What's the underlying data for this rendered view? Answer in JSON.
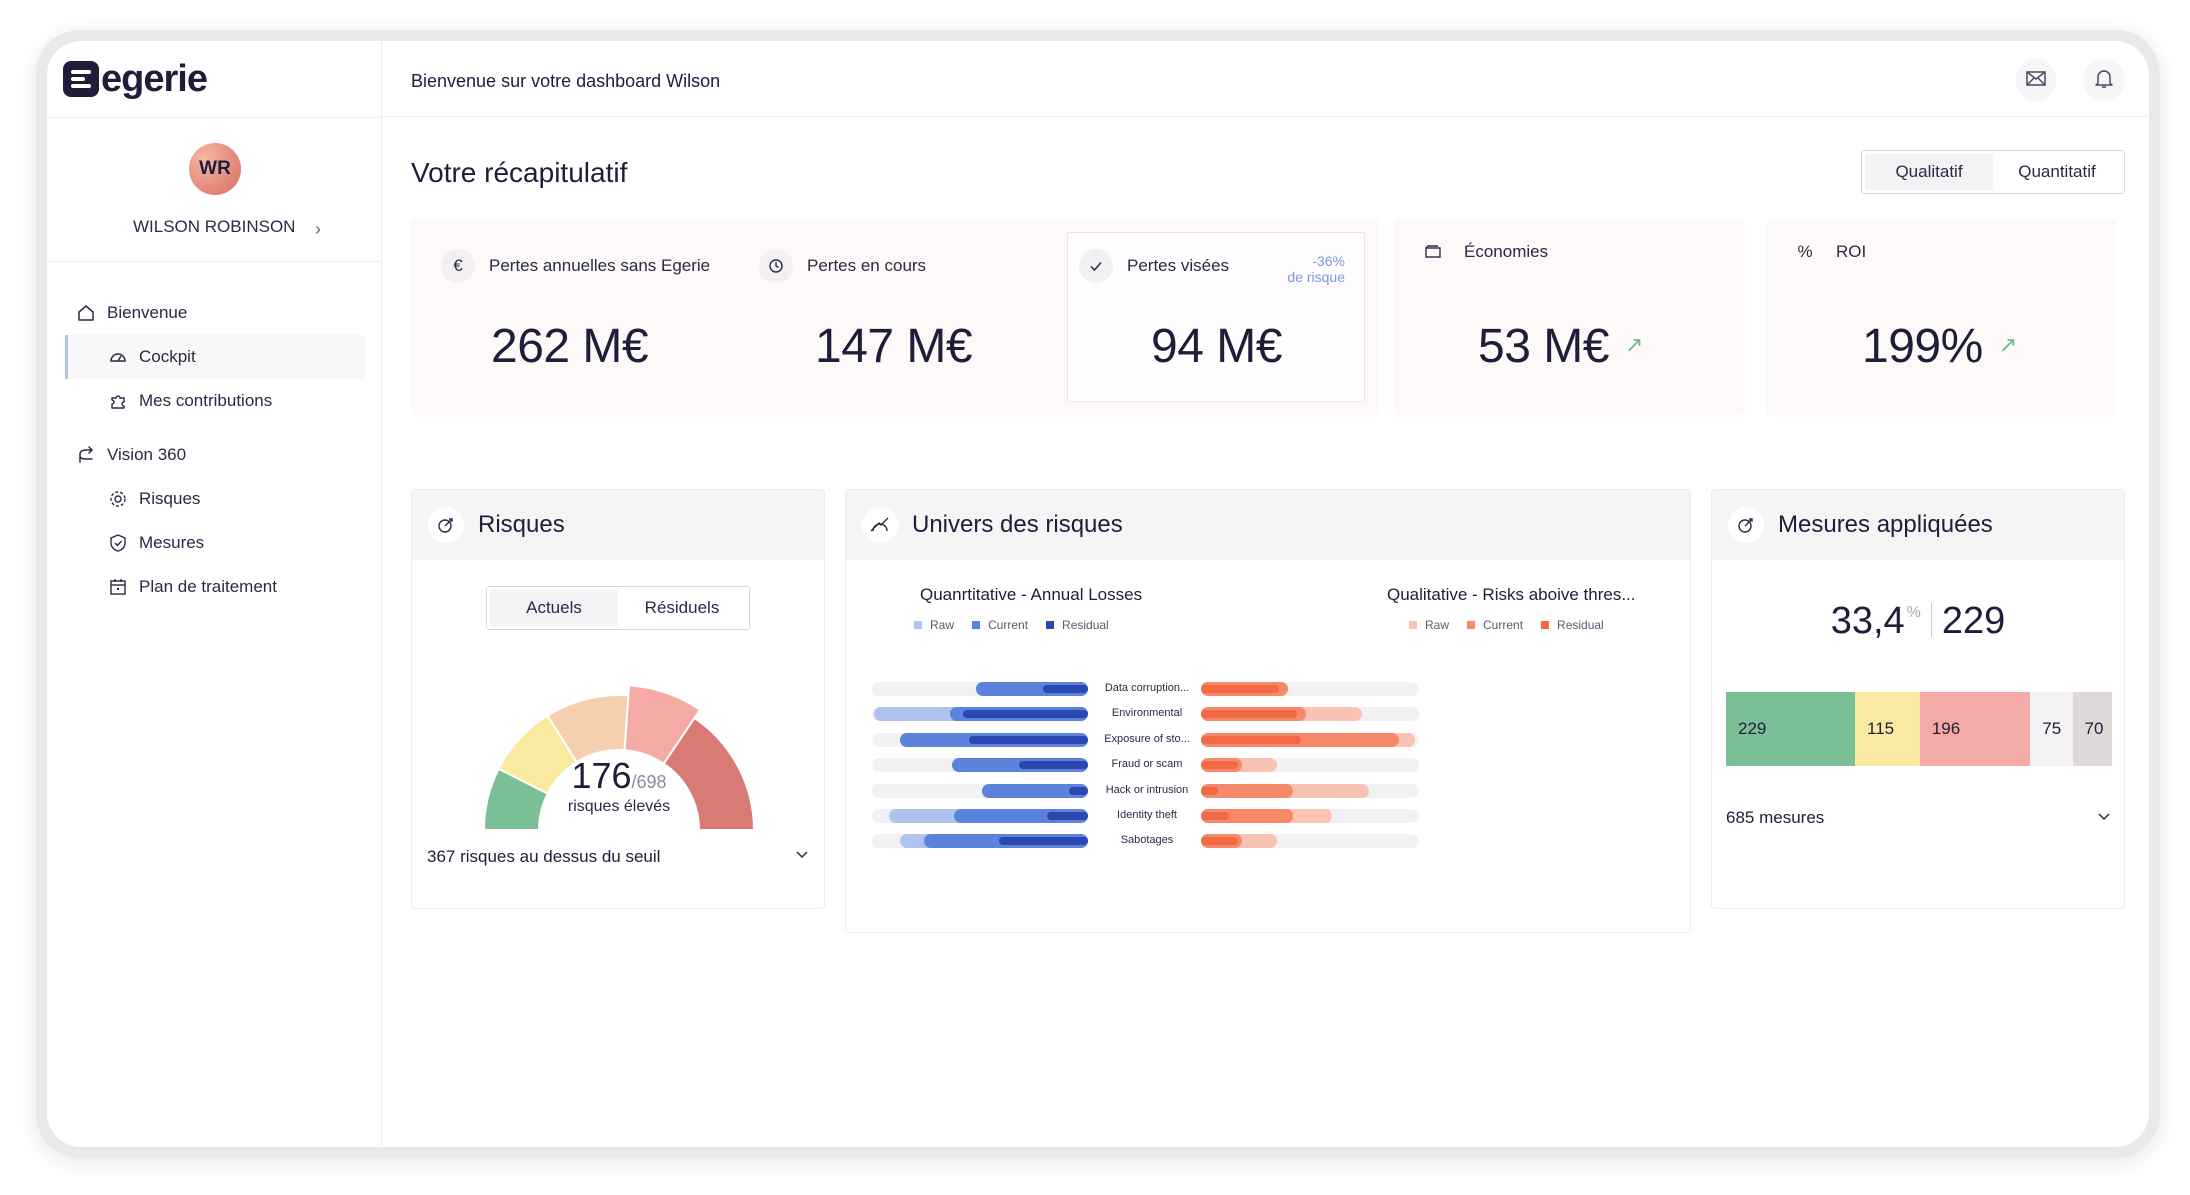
{
  "brand": {
    "name": "egerie",
    "initials": "WR"
  },
  "user": {
    "name": "WILSON ROBINSON"
  },
  "header": {
    "welcome": "Bienvenue sur votre dashboard Wilson"
  },
  "nav": {
    "home": "Bienvenue",
    "cockpit": "Cockpit",
    "contributions": "Mes contributions",
    "vision": "Vision 360",
    "risques": "Risques",
    "mesures": "Mesures",
    "plan": "Plan de traitement"
  },
  "summary": {
    "title": "Votre récapitulatif",
    "toggle": [
      "Qualitatif",
      "Quantitatif"
    ],
    "kpis": {
      "pertes_annuelles": {
        "label": "Pertes annuelles sans Egerie",
        "value": "262 M€",
        "icon": "euro-icon"
      },
      "pertes_en_cours": {
        "label": "Pertes en cours",
        "value": "147 M€",
        "icon": "clock-icon"
      },
      "pertes_visees": {
        "label": "Pertes visées",
        "value": "94 M€",
        "delta": "-36%",
        "delta_sub": "de risque",
        "icon": "check-icon"
      },
      "economies": {
        "label": "Économies",
        "value": "53 M€",
        "icon": "wallet-icon"
      },
      "roi": {
        "label": "ROI",
        "value": "199%",
        "prefix": "%"
      }
    }
  },
  "risques": {
    "title": "Risques",
    "tabs": [
      "Actuels",
      "Résiduels"
    ],
    "gauge": {
      "value": "176",
      "total": "/698",
      "sublabel": "risques élevés",
      "fraction": 0.252
    },
    "footer": "367 risques au dessus du seuil"
  },
  "univers": {
    "title": "Univers des risques",
    "left_title": "Quanrtitative - Annual Losses",
    "right_title": "Qualitative - Risks aboive thres...",
    "legend": [
      "Raw",
      "Current",
      "Residual"
    ],
    "colors": {
      "left": [
        "#aec3f0",
        "#5b83dc",
        "#2b48b0"
      ],
      "right": [
        "#f9c3b4",
        "#f7896b",
        "#f26a44"
      ]
    },
    "categories": [
      "Data corruption...",
      "Environmental",
      "Exposure of sto...",
      "Fraud or scam",
      "Hack or intrusion",
      "Identity theft",
      "Sabotages"
    ],
    "quantitative": {
      "raw": [
        0.52,
        0.99,
        0.87,
        0.63,
        0.49,
        0.92,
        0.87
      ],
      "current": [
        0.52,
        0.64,
        0.87,
        0.63,
        0.49,
        0.62,
        0.76
      ],
      "residual": [
        0.21,
        0.58,
        0.55,
        0.32,
        0.09,
        0.19,
        0.41
      ]
    },
    "qualitative": {
      "raw": [
        0.4,
        0.74,
        0.98,
        0.35,
        0.77,
        0.6,
        0.35
      ],
      "current": [
        0.4,
        0.48,
        0.91,
        0.19,
        0.42,
        0.42,
        0.19
      ],
      "residual": [
        0.36,
        0.44,
        0.46,
        0.17,
        0.08,
        0.13,
        0.17
      ]
    }
  },
  "mesures": {
    "title": "Mesures appliquées",
    "percent": "33,4",
    "percent_sign": "%",
    "count": "229",
    "segments": [
      {
        "label": "229",
        "value": 229,
        "color": "#7bbf96"
      },
      {
        "label": "115",
        "value": 115,
        "color": "#faeaa0"
      },
      {
        "label": "196",
        "value": 196,
        "color": "#f4aaa6"
      },
      {
        "label": "75",
        "value": 75,
        "color": "#f4f2f4"
      },
      {
        "label": "70",
        "value": 70,
        "color": "#ded8d8"
      }
    ],
    "footer": "685 mesures"
  }
}
